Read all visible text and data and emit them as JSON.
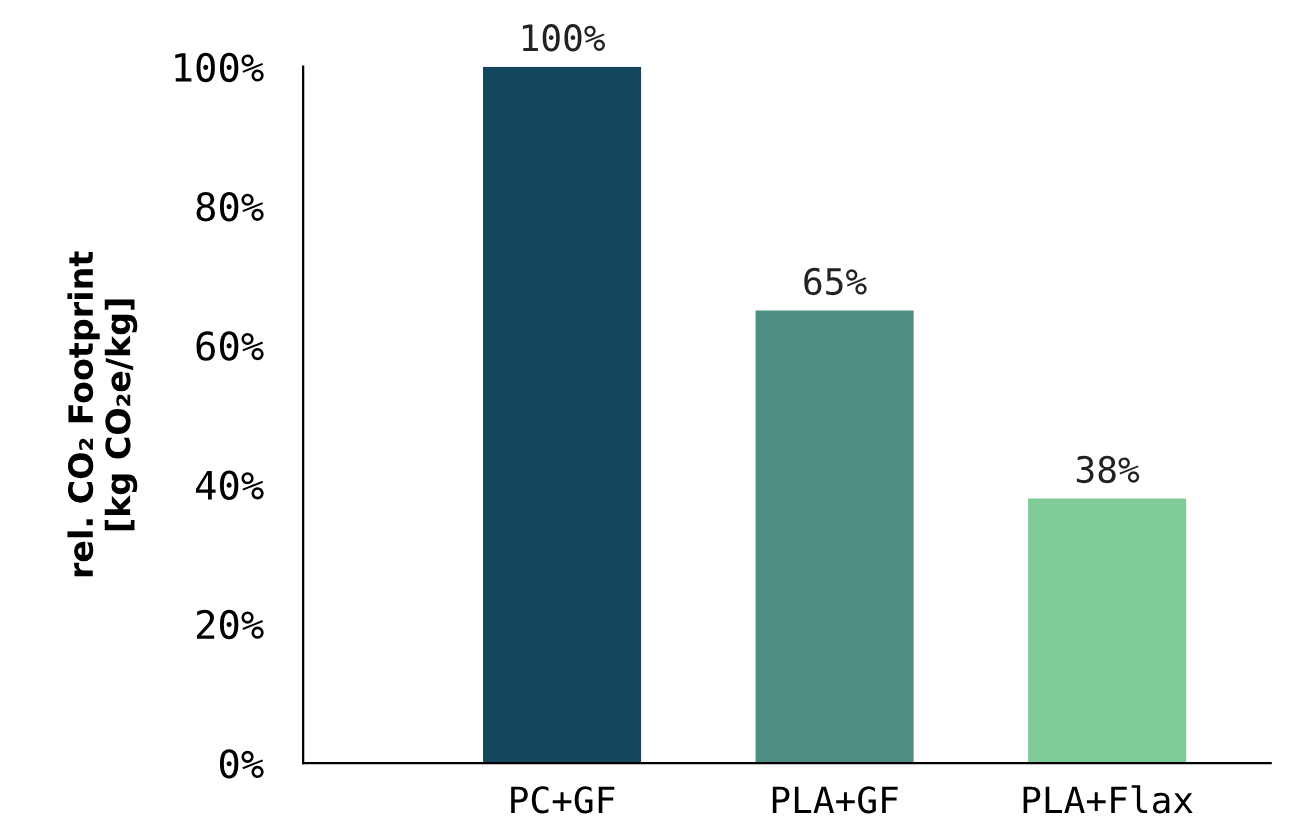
{
  "chart_data": {
    "type": "bar",
    "ylabel": "rel. CO₂ Footprint\n[kg CO₂e/kg]",
    "categories": [
      "PC+GF",
      "PLA+GF",
      "PLA+Flax"
    ],
    "values": [
      100,
      65,
      38
    ],
    "colors": [
      "#13465d",
      "#4d8d82",
      "#7fcb98"
    ],
    "value_labels": [
      "100%",
      "65%",
      "38%"
    ],
    "ylim": [
      0,
      100
    ],
    "yticks": [
      {
        "value": 0,
        "label": "0%"
      },
      {
        "value": 20,
        "label": "20%"
      },
      {
        "value": 40,
        "label": "40%"
      },
      {
        "value": 60,
        "label": "60%"
      },
      {
        "value": 80,
        "label": "80%"
      },
      {
        "value": 100,
        "label": "100%"
      }
    ],
    "grid": false,
    "legend": false
  }
}
